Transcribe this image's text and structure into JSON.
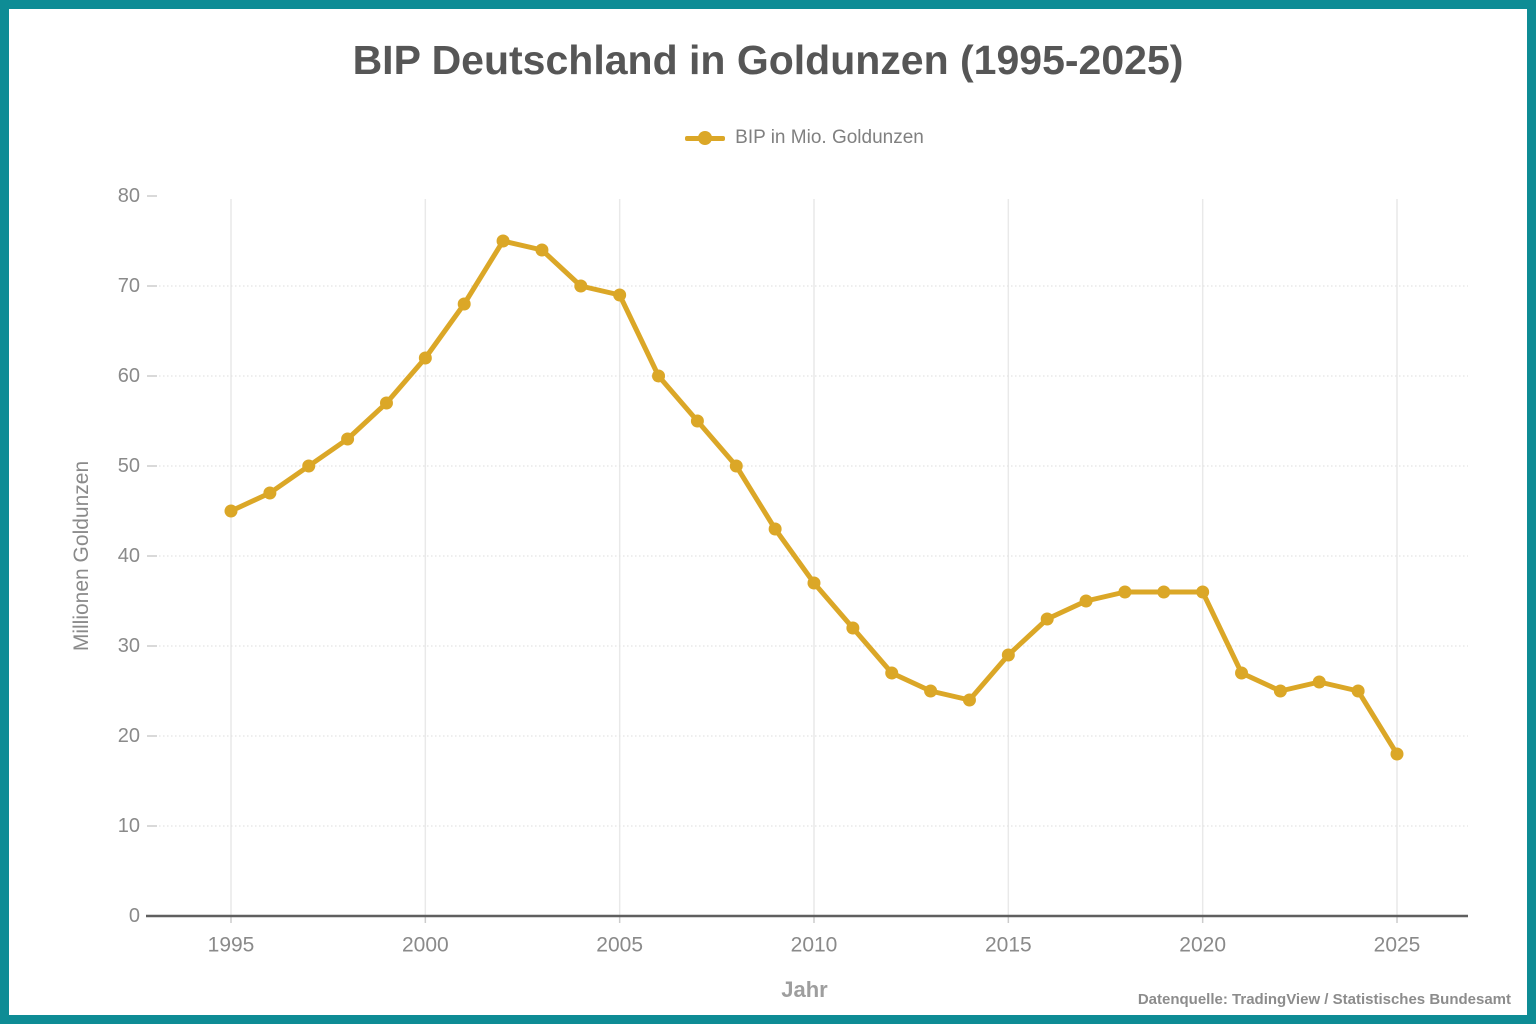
{
  "page": {
    "border_color": "#0e8c95",
    "background": "#ffffff",
    "title_color": "#565656",
    "axis_text_color": "#8a8a8a"
  },
  "chart_data": {
    "type": "line",
    "title": "BIP Deutschland in Goldunzen (1995-2025)",
    "xlabel": "Jahr",
    "ylabel": "Millionen Goldunzen",
    "x": [
      1995,
      1996,
      1997,
      1998,
      1999,
      2000,
      2001,
      2002,
      2003,
      2004,
      2005,
      2006,
      2007,
      2008,
      2009,
      2010,
      2011,
      2012,
      2013,
      2014,
      2015,
      2016,
      2017,
      2018,
      2019,
      2020,
      2021,
      2022,
      2023,
      2024,
      2025
    ],
    "series": [
      {
        "name": "BIP in Mio. Goldunzen",
        "color": "#dba727",
        "values": [
          45,
          47,
          50,
          53,
          57,
          62,
          68,
          75,
          74,
          70,
          69,
          60,
          55,
          50,
          43,
          37,
          32,
          27,
          25,
          24,
          29,
          33,
          35,
          36,
          36,
          36,
          27,
          25,
          26,
          25,
          18
        ]
      }
    ],
    "ylim": [
      0,
      80
    ],
    "yticks": [
      0,
      10,
      20,
      30,
      40,
      50,
      60,
      70,
      80
    ],
    "xticks": [
      1995,
      2000,
      2005,
      2010,
      2015,
      2020,
      2025
    ],
    "grid": true,
    "legend_position": "top-center"
  },
  "footer": {
    "source": "Datenquelle: TradingView / Statistisches Bundesamt"
  }
}
